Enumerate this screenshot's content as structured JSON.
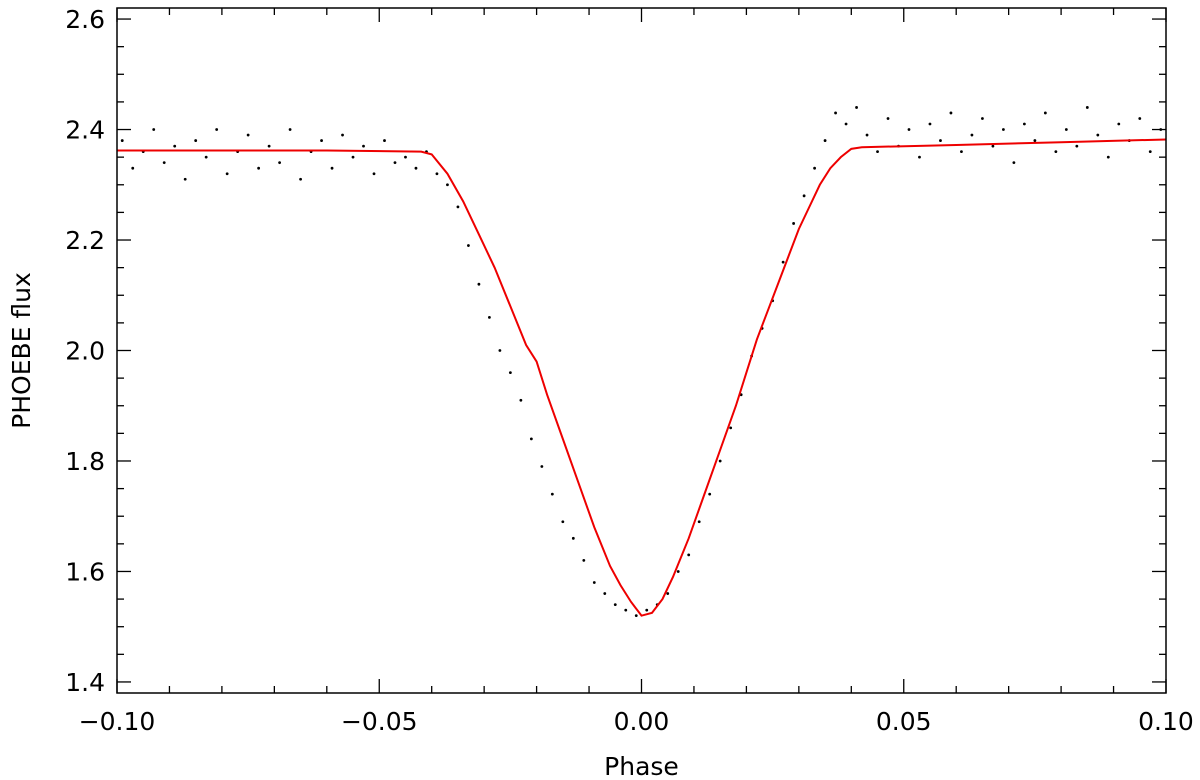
{
  "chart_data": {
    "type": "scatter",
    "title": "",
    "xlabel": "Phase",
    "ylabel": "PHOEBE flux",
    "xlim": [
      -0.1,
      0.1
    ],
    "ylim": [
      1.38,
      2.62
    ],
    "x_ticks": [
      -0.1,
      -0.05,
      0.0,
      0.05,
      0.1
    ],
    "x_tick_labels": [
      "−0.10",
      "−0.05",
      "0.00",
      "0.05",
      "0.10"
    ],
    "y_ticks": [
      1.4,
      1.6,
      1.8,
      2.0,
      2.2,
      2.4,
      2.6
    ],
    "y_tick_labels": [
      "1.4",
      "1.6",
      "1.8",
      "2.0",
      "2.2",
      "2.4",
      "2.6"
    ],
    "grid": false,
    "legend": "none",
    "colors": {
      "observations": "#000000",
      "model": "#ee0000"
    },
    "series": [
      {
        "kind": "scatter",
        "x": [
          -0.099,
          -0.097,
          -0.095,
          -0.093,
          -0.091,
          -0.089,
          -0.087,
          -0.085,
          -0.083,
          -0.081,
          -0.079,
          -0.077,
          -0.075,
          -0.073,
          -0.071,
          -0.069,
          -0.067,
          -0.065,
          -0.063,
          -0.061,
          -0.059,
          -0.057,
          -0.055,
          -0.053,
          -0.051,
          -0.049,
          -0.047,
          -0.045,
          -0.043,
          -0.041,
          -0.039,
          -0.037,
          -0.035,
          -0.033,
          -0.031,
          -0.029,
          -0.027,
          -0.025,
          -0.023,
          -0.021,
          -0.019,
          -0.017,
          -0.015,
          -0.013,
          -0.011,
          -0.009,
          -0.007,
          -0.005,
          -0.003,
          -0.001,
          0.001,
          0.003,
          0.005,
          0.007,
          0.009,
          0.011,
          0.013,
          0.015,
          0.017,
          0.019,
          0.021,
          0.023,
          0.025,
          0.027,
          0.029,
          0.031,
          0.033,
          0.035,
          0.037,
          0.039,
          0.041,
          0.043,
          0.045,
          0.047,
          0.049,
          0.051,
          0.053,
          0.055,
          0.057,
          0.059,
          0.061,
          0.063,
          0.065,
          0.067,
          0.069,
          0.071,
          0.073,
          0.075,
          0.077,
          0.079,
          0.081,
          0.083,
          0.085,
          0.087,
          0.089,
          0.091,
          0.093,
          0.095,
          0.097,
          0.099
        ],
        "y": [
          2.38,
          2.33,
          2.36,
          2.4,
          2.34,
          2.37,
          2.31,
          2.38,
          2.35,
          2.4,
          2.32,
          2.36,
          2.39,
          2.33,
          2.37,
          2.34,
          2.4,
          2.31,
          2.36,
          2.38,
          2.33,
          2.39,
          2.35,
          2.37,
          2.32,
          2.38,
          2.34,
          2.35,
          2.33,
          2.36,
          2.32,
          2.3,
          2.26,
          2.19,
          2.12,
          2.06,
          2.0,
          1.96,
          1.91,
          1.84,
          1.79,
          1.74,
          1.69,
          1.66,
          1.62,
          1.58,
          1.56,
          1.54,
          1.53,
          1.52,
          1.53,
          1.54,
          1.56,
          1.6,
          1.63,
          1.69,
          1.74,
          1.8,
          1.86,
          1.92,
          1.99,
          2.04,
          2.09,
          2.16,
          2.23,
          2.28,
          2.33,
          2.38,
          2.43,
          2.41,
          2.44,
          2.39,
          2.36,
          2.42,
          2.37,
          2.4,
          2.35,
          2.41,
          2.38,
          2.43,
          2.36,
          2.39,
          2.42,
          2.37,
          2.4,
          2.34,
          2.41,
          2.38,
          2.43,
          2.36,
          2.4,
          2.37,
          2.44,
          2.39,
          2.35,
          2.41,
          2.38,
          2.42,
          2.36,
          2.4
        ]
      },
      {
        "kind": "line",
        "x": [
          -0.1,
          -0.06,
          -0.042,
          -0.04,
          -0.037,
          -0.034,
          -0.031,
          -0.028,
          -0.025,
          -0.022,
          -0.02,
          -0.018,
          -0.015,
          -0.012,
          -0.009,
          -0.006,
          -0.004,
          -0.002,
          0.0,
          0.002,
          0.004,
          0.006,
          0.009,
          0.012,
          0.015,
          0.018,
          0.02,
          0.022,
          0.024,
          0.026,
          0.028,
          0.03,
          0.032,
          0.034,
          0.036,
          0.038,
          0.04,
          0.042,
          0.06,
          0.08,
          0.1
        ],
        "y": [
          2.362,
          2.362,
          2.36,
          2.355,
          2.32,
          2.27,
          2.21,
          2.15,
          2.08,
          2.01,
          1.98,
          1.92,
          1.84,
          1.76,
          1.68,
          1.61,
          1.575,
          1.545,
          1.52,
          1.525,
          1.55,
          1.59,
          1.66,
          1.74,
          1.82,
          1.9,
          1.96,
          2.02,
          2.07,
          2.12,
          2.17,
          2.22,
          2.26,
          2.3,
          2.33,
          2.35,
          2.365,
          2.368,
          2.372,
          2.377,
          2.382
        ]
      }
    ]
  }
}
